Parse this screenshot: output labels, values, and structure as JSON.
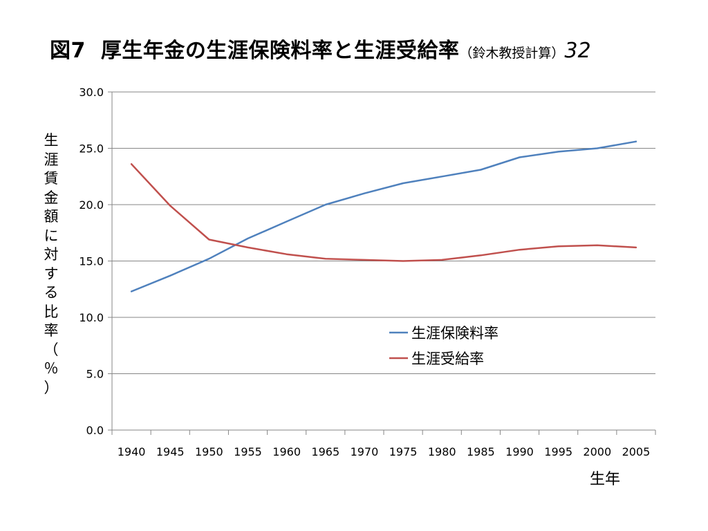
{
  "title": {
    "figure_no": "図7",
    "main": "厚生年金の生涯保険料率と生涯受給率",
    "note": "（鈴木教授計算）",
    "page_no": "32"
  },
  "chart_data": {
    "type": "line",
    "title": "図7　厚生年金の生涯保険料率と生涯受給率",
    "xlabel": "生年",
    "ylabel": "生涯賃金額に対する比率（％）",
    "categories": [
      "1940",
      "1945",
      "1950",
      "1955",
      "1960",
      "1965",
      "1970",
      "1975",
      "1980",
      "1985",
      "1990",
      "1995",
      "2000",
      "2005"
    ],
    "yticks": [
      "0.0",
      "5.0",
      "10.0",
      "15.0",
      "20.0",
      "25.0",
      "30.0"
    ],
    "ylim": [
      0,
      30
    ],
    "grid": "horizontal",
    "legend_position": "center-right",
    "series": [
      {
        "name": "生涯保険料率",
        "color": "#4f81bd",
        "values": [
          12.3,
          13.7,
          15.2,
          17.0,
          18.5,
          20.0,
          21.0,
          21.9,
          22.5,
          23.1,
          24.2,
          24.7,
          25.0,
          25.6
        ]
      },
      {
        "name": "生涯受給率",
        "color": "#c0504d",
        "values": [
          23.6,
          19.9,
          16.9,
          16.2,
          15.6,
          15.2,
          15.1,
          15.0,
          15.1,
          15.5,
          16.0,
          16.3,
          16.4,
          16.2
        ]
      }
    ]
  }
}
